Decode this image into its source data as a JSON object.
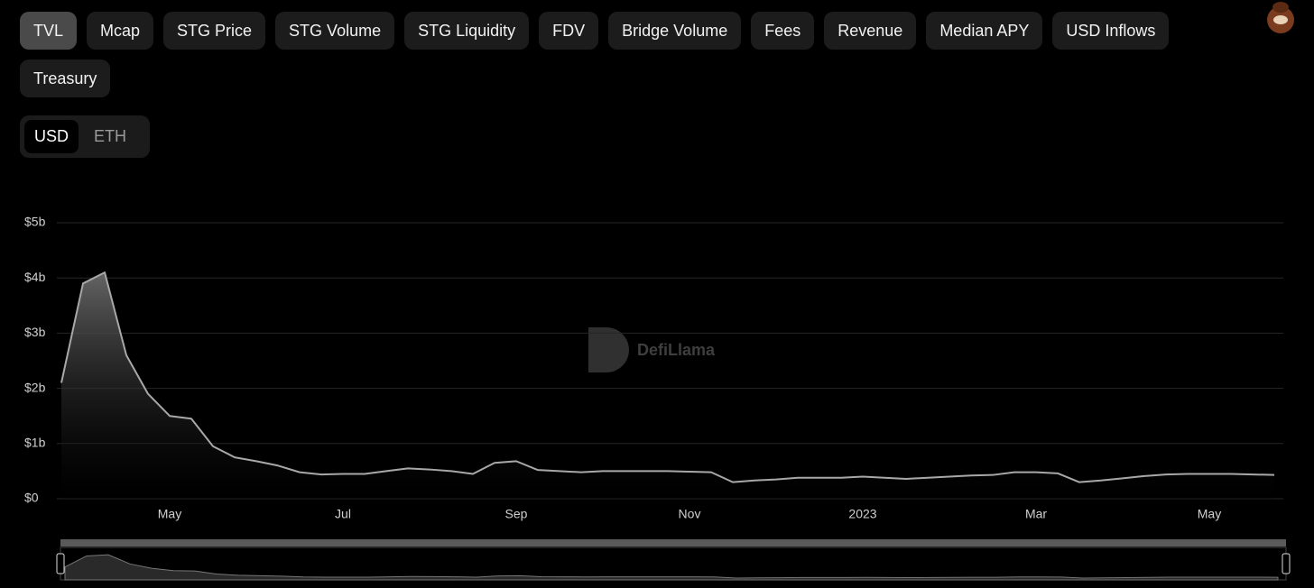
{
  "tabs": [
    "TVL",
    "Mcap",
    "STG Price",
    "STG Volume",
    "STG Liquidity",
    "FDV",
    "Bridge Volume",
    "Fees",
    "Revenue",
    "Median APY",
    "USD Inflows",
    "Treasury"
  ],
  "active_tab": 0,
  "currency_options": [
    "USD",
    "ETH"
  ],
  "active_currency": 0,
  "watermark": "DefiLlama",
  "chart_data": {
    "type": "area",
    "categories": [
      null,
      null,
      null,
      null,
      null,
      "May",
      null,
      null,
      null,
      null,
      null,
      null,
      null,
      "Jul",
      null,
      null,
      null,
      null,
      null,
      null,
      null,
      "Sep",
      null,
      null,
      null,
      null,
      null,
      null,
      null,
      "Nov",
      null,
      null,
      null,
      null,
      null,
      null,
      null,
      "2023",
      null,
      null,
      null,
      null,
      null,
      null,
      null,
      "Mar",
      null,
      null,
      null,
      null,
      null,
      null,
      null,
      "May",
      null,
      null,
      null
    ],
    "values": [
      2100000000.0,
      3900000000.0,
      4100000000.0,
      2600000000.0,
      1900000000.0,
      1500000000.0,
      1450000000.0,
      950000000.0,
      750000000.0,
      680000000.0,
      600000000.0,
      480000000.0,
      440000000.0,
      450000000.0,
      450000000.0,
      500000000.0,
      550000000.0,
      530000000.0,
      500000000.0,
      450000000.0,
      650000000.0,
      680000000.0,
      520000000.0,
      500000000.0,
      480000000.0,
      500000000.0,
      500000000.0,
      500000000.0,
      500000000.0,
      490000000.0,
      480000000.0,
      300000000.0,
      330000000.0,
      350000000.0,
      380000000.0,
      380000000.0,
      380000000.0,
      400000000.0,
      380000000.0,
      360000000.0,
      380000000.0,
      400000000.0,
      420000000.0,
      430000000.0,
      480000000.0,
      480000000.0,
      460000000.0,
      300000000.0,
      330000000.0,
      370000000.0,
      410000000.0,
      440000000.0,
      450000000.0,
      450000000.0,
      450000000.0,
      440000000.0,
      430000000.0
    ],
    "color": "#a8a8a8",
    "ylim": [
      0,
      5000000000.0
    ],
    "yticks": [
      {
        "value": 0,
        "label": "$0"
      },
      {
        "value": 1000000000.0,
        "label": "$1b"
      },
      {
        "value": 2000000000.0,
        "label": "$2b"
      },
      {
        "value": 3000000000.0,
        "label": "$3b"
      },
      {
        "value": 4000000000.0,
        "label": "$4b"
      },
      {
        "value": 5000000000.0,
        "label": "$5b"
      }
    ],
    "grid": true
  }
}
